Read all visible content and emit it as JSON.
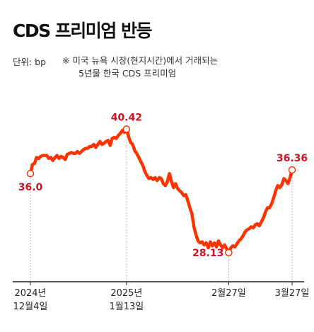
{
  "title": "CDS 프리미엄 반등",
  "unit_label": "단위: bp",
  "note": {
    "line1": "※ 미국 뉴욕 시장(현지시간)에서 거래되는",
    "line2": "5년물 한국 CDS 프리미엄"
  },
  "colors": {
    "line": "#ff3300",
    "highlight": "#d01025",
    "guide": "#bbbbbb",
    "axis": "#222222"
  },
  "chart_data": {
    "type": "line",
    "title": "CDS 프리미엄 반등",
    "ylabel": "bp",
    "ylim": [
      26.5,
      42.0
    ],
    "grid": false,
    "legend": "none",
    "series": [
      {
        "values": [
          36.0,
          36.9,
          37.0,
          37.6,
          37.5,
          37.7,
          37.8,
          37.8,
          37.8,
          37.5,
          37.6,
          37.3,
          37.6,
          37.8,
          37.5,
          37.7,
          37.6,
          37.4,
          37.9,
          38.0,
          38.1,
          38.0,
          38.0,
          38.2,
          38.0,
          38.2,
          38.4,
          38.5,
          38.5,
          38.7,
          38.7,
          38.9,
          38.6,
          38.9,
          39.2,
          38.9,
          39.0,
          39.2,
          39.3,
          38.8,
          39.5,
          39.6,
          39.5,
          39.8,
          40.0,
          40.3,
          40.1,
          40.42,
          39.7,
          39.1,
          38.9,
          38.3,
          38.0,
          37.6,
          37.2,
          36.8,
          36.2,
          35.8,
          35.5,
          35.6,
          35.4,
          35.6,
          35.3,
          35.6,
          35.5,
          35.0,
          34.8,
          35.2,
          36.0,
          35.2,
          34.6,
          35.0,
          34.5,
          34.3,
          34.1,
          33.8,
          33.9,
          33.3,
          32.6,
          32.0,
          30.7,
          29.9,
          29.3,
          29.1,
          29.2,
          28.9,
          29.1,
          28.6,
          29.2,
          28.8,
          29.1,
          28.7,
          29.3,
          28.9,
          28.6,
          28.9,
          28.5,
          28.13,
          28.6,
          28.8,
          28.7,
          29.0,
          29.3,
          29.5,
          29.8,
          30.2,
          30.4,
          30.5,
          30.7,
          30.6,
          30.9,
          31.0,
          30.8,
          31.2,
          31.6,
          32.2,
          32.6,
          32.6,
          33.0,
          33.6,
          34.3,
          34.8,
          34.6,
          34.9,
          35.5,
          35.3,
          35.0,
          35.6,
          36.36
        ]
      }
    ],
    "x_ticks": [
      {
        "index": 0,
        "line1": "2024년",
        "line2": "12월4일"
      },
      {
        "index": 47,
        "line1": "2025년",
        "line2": "1월13일"
      },
      {
        "index": 97,
        "line1": "2월27일",
        "line2": ""
      },
      {
        "index": 128,
        "line1": "3월27일",
        "line2": ""
      }
    ],
    "highlights": [
      {
        "index": 0,
        "label": "36.0",
        "placement": "below"
      },
      {
        "index": 47,
        "label": "40.42",
        "placement": "above"
      },
      {
        "index": 97,
        "label": "28.13",
        "placement": "left"
      },
      {
        "index": 128,
        "label": "36.36",
        "placement": "above"
      }
    ]
  }
}
